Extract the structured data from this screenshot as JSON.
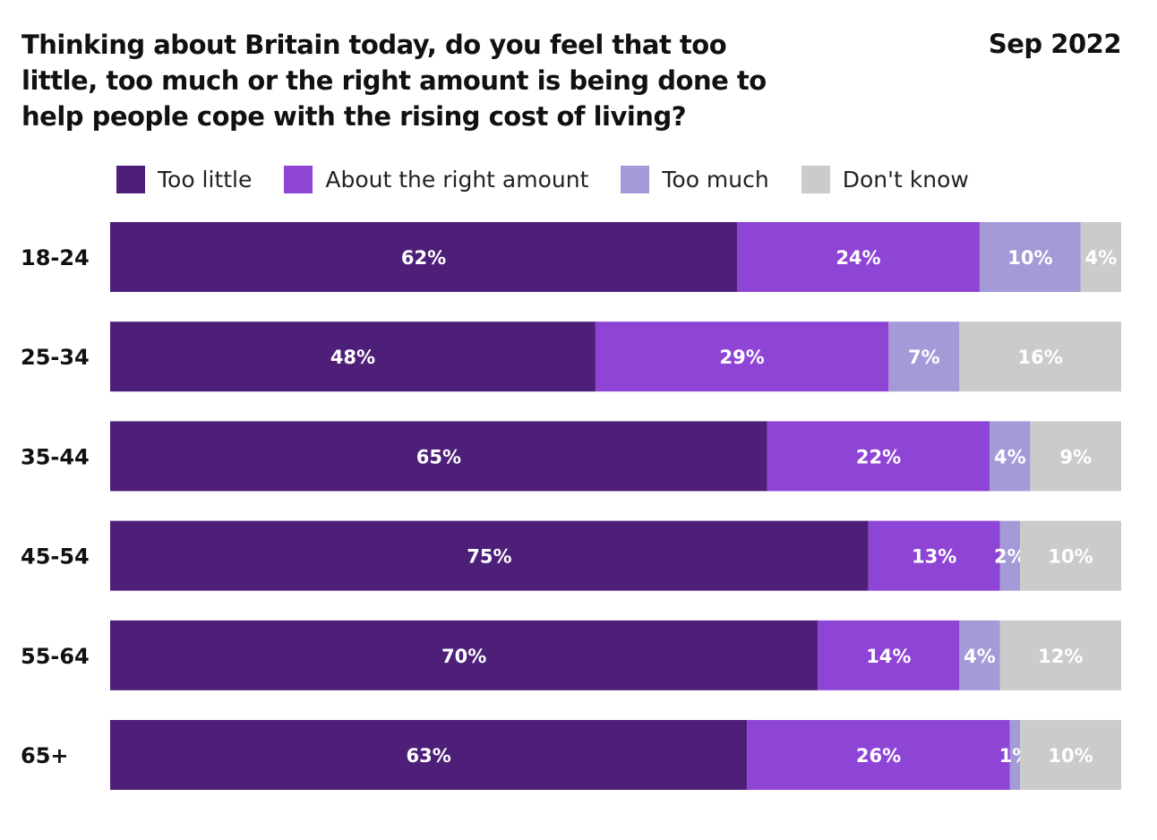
{
  "title": "Thinking about Britain today, do you feel that too little, too much or the right amount is being done to help people cope with the rising cost of living?",
  "date_label": "Sep 2022",
  "colors": {
    "too_little": "#4e1f78",
    "right_amount": "#8e45d5",
    "too_much": "#a59ad8",
    "dont_know": "#cbcbcb"
  },
  "chart_data": {
    "type": "bar",
    "orientation": "horizontal-stacked",
    "xlim": [
      0,
      100
    ],
    "legend_placement": "top",
    "categories": [
      "18-24",
      "25-34",
      "35-44",
      "45-54",
      "55-64",
      "65+"
    ],
    "series": [
      {
        "name": "Too little",
        "color": "#4e1f78",
        "values": [
          62,
          48,
          65,
          75,
          70,
          63
        ]
      },
      {
        "name": "About the right amount",
        "color": "#8e45d5",
        "values": [
          24,
          29,
          22,
          13,
          14,
          26
        ]
      },
      {
        "name": "Too much",
        "color": "#a59ad8",
        "values": [
          10,
          7,
          4,
          2,
          4,
          1
        ]
      },
      {
        "name": "Don't know",
        "color": "#cbcbcb",
        "values": [
          4,
          16,
          9,
          10,
          12,
          10
        ]
      }
    ],
    "value_suffix": "%"
  }
}
